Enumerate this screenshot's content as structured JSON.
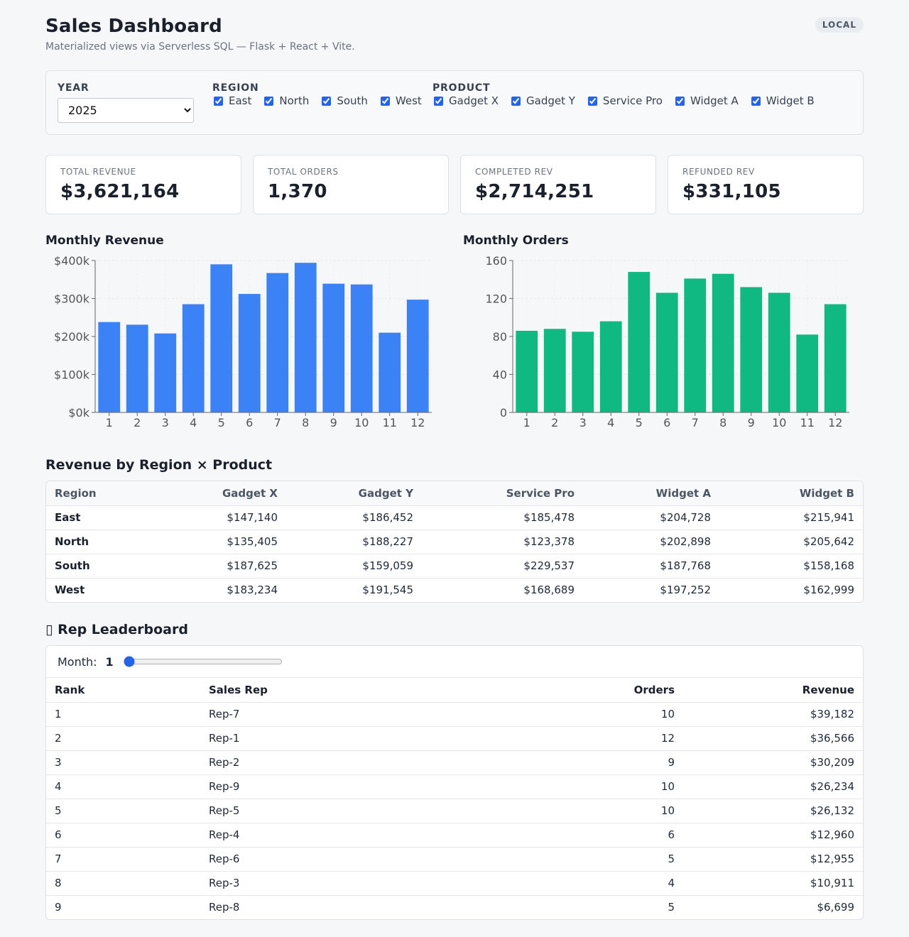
{
  "header": {
    "title": "Sales Dashboard",
    "subtitle": "Materialized views via Serverless SQL — Flask + React + Vite.",
    "badge": "LOCAL"
  },
  "filters": {
    "year": {
      "label": "YEAR",
      "value": "2025",
      "options": [
        "2025"
      ]
    },
    "region": {
      "label": "REGION",
      "items": [
        "East",
        "North",
        "South",
        "West"
      ]
    },
    "product": {
      "label": "PRODUCT",
      "items": [
        "Gadget X",
        "Gadget Y",
        "Service Pro",
        "Widget A",
        "Widget B"
      ]
    }
  },
  "kpis": [
    {
      "label": "TOTAL REVENUE",
      "value": "$3,621,164"
    },
    {
      "label": "TOTAL ORDERS",
      "value": "1,370"
    },
    {
      "label": "COMPLETED REV",
      "value": "$2,714,251"
    },
    {
      "label": "REFUNDED REV",
      "value": "$331,105"
    }
  ],
  "chart_titles": {
    "revenue": "Monthly Revenue",
    "orders": "Monthly Orders"
  },
  "chart_data": [
    {
      "type": "bar",
      "title": "Monthly Revenue",
      "categories": [
        "1",
        "2",
        "3",
        "4",
        "5",
        "6",
        "7",
        "8",
        "9",
        "10",
        "11",
        "12"
      ],
      "values": [
        238000,
        231000,
        208000,
        285000,
        390000,
        312000,
        367000,
        394000,
        339000,
        337000,
        210000,
        297000
      ],
      "ylim": [
        0,
        400000
      ],
      "yticks": [
        0,
        100000,
        200000,
        300000,
        400000
      ],
      "ytick_labels": [
        "$0k",
        "$100k",
        "$200k",
        "$300k",
        "$400k"
      ],
      "color": "#3b82f6",
      "grid": true
    },
    {
      "type": "bar",
      "title": "Monthly Orders",
      "categories": [
        "1",
        "2",
        "3",
        "4",
        "5",
        "6",
        "7",
        "8",
        "9",
        "10",
        "11",
        "12"
      ],
      "values": [
        86,
        88,
        85,
        96,
        148,
        126,
        141,
        146,
        132,
        126,
        82,
        114
      ],
      "ylim": [
        0,
        160
      ],
      "yticks": [
        0,
        40,
        80,
        120,
        160
      ],
      "ytick_labels": [
        "0",
        "40",
        "80",
        "120",
        "160"
      ],
      "color": "#10b981",
      "grid": true
    }
  ],
  "region_product": {
    "title": "Revenue by Region × Product",
    "headers": [
      "Region",
      "Gadget X",
      "Gadget Y",
      "Service Pro",
      "Widget A",
      "Widget B"
    ],
    "rows": [
      [
        "East",
        "$147,140",
        "$186,452",
        "$185,478",
        "$204,728",
        "$215,941"
      ],
      [
        "North",
        "$135,405",
        "$188,227",
        "$123,378",
        "$202,898",
        "$205,642"
      ],
      [
        "South",
        "$187,625",
        "$159,059",
        "$229,537",
        "$187,768",
        "$158,168"
      ],
      [
        "West",
        "$183,234",
        "$191,545",
        "$168,689",
        "$197,252",
        "$162,999"
      ]
    ]
  },
  "leaderboard": {
    "title": "▯ Rep Leaderboard",
    "month_label": "Month:",
    "month_value": "1",
    "month_min": 1,
    "month_max": 12,
    "headers": [
      "Rank",
      "Sales Rep",
      "Orders",
      "Revenue"
    ],
    "rows": [
      [
        "1",
        "Rep-7",
        "10",
        "$39,182"
      ],
      [
        "2",
        "Rep-1",
        "12",
        "$36,566"
      ],
      [
        "3",
        "Rep-2",
        "9",
        "$30,209"
      ],
      [
        "4",
        "Rep-9",
        "10",
        "$26,234"
      ],
      [
        "5",
        "Rep-5",
        "10",
        "$26,132"
      ],
      [
        "6",
        "Rep-4",
        "6",
        "$12,960"
      ],
      [
        "7",
        "Rep-6",
        "5",
        "$12,955"
      ],
      [
        "8",
        "Rep-3",
        "4",
        "$10,911"
      ],
      [
        "9",
        "Rep-8",
        "5",
        "$6,699"
      ]
    ]
  }
}
